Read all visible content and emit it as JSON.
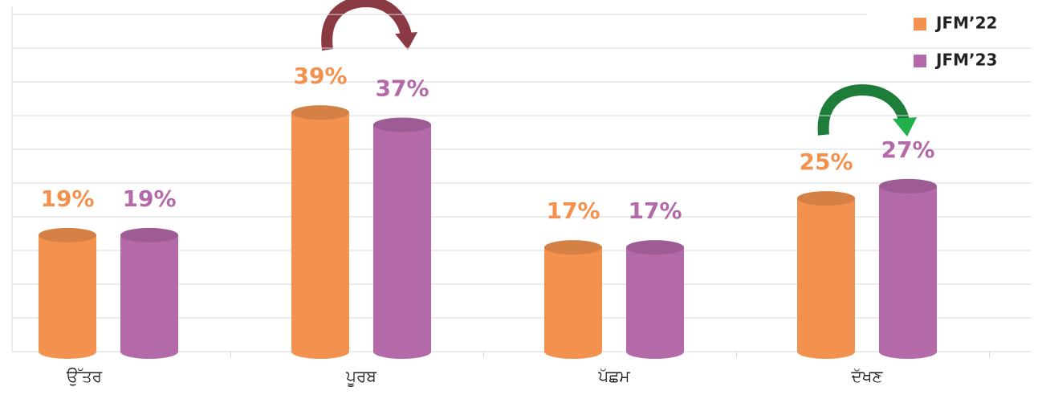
{
  "chart_data": {
    "type": "cylinder_bar",
    "categories": [
      "ਉੱਤਰ",
      "ਪੂਰਬ",
      "ਪੱਛਮ",
      "ਦੱਖਣ"
    ],
    "series": [
      {
        "name": "JFM’22",
        "color": "#f2924e",
        "values": [
          19,
          39,
          17,
          25
        ],
        "value_labels": [
          "19%",
          "39%",
          "17%",
          "25%"
        ]
      },
      {
        "name": "JFM’23",
        "color": "#b469a8",
        "values": [
          19,
          37,
          17,
          27
        ],
        "value_labels": [
          "19%",
          "37%",
          "17%",
          "27%"
        ]
      }
    ],
    "ylim": [
      0,
      55
    ],
    "grid": true,
    "legend": "top-right"
  }
}
